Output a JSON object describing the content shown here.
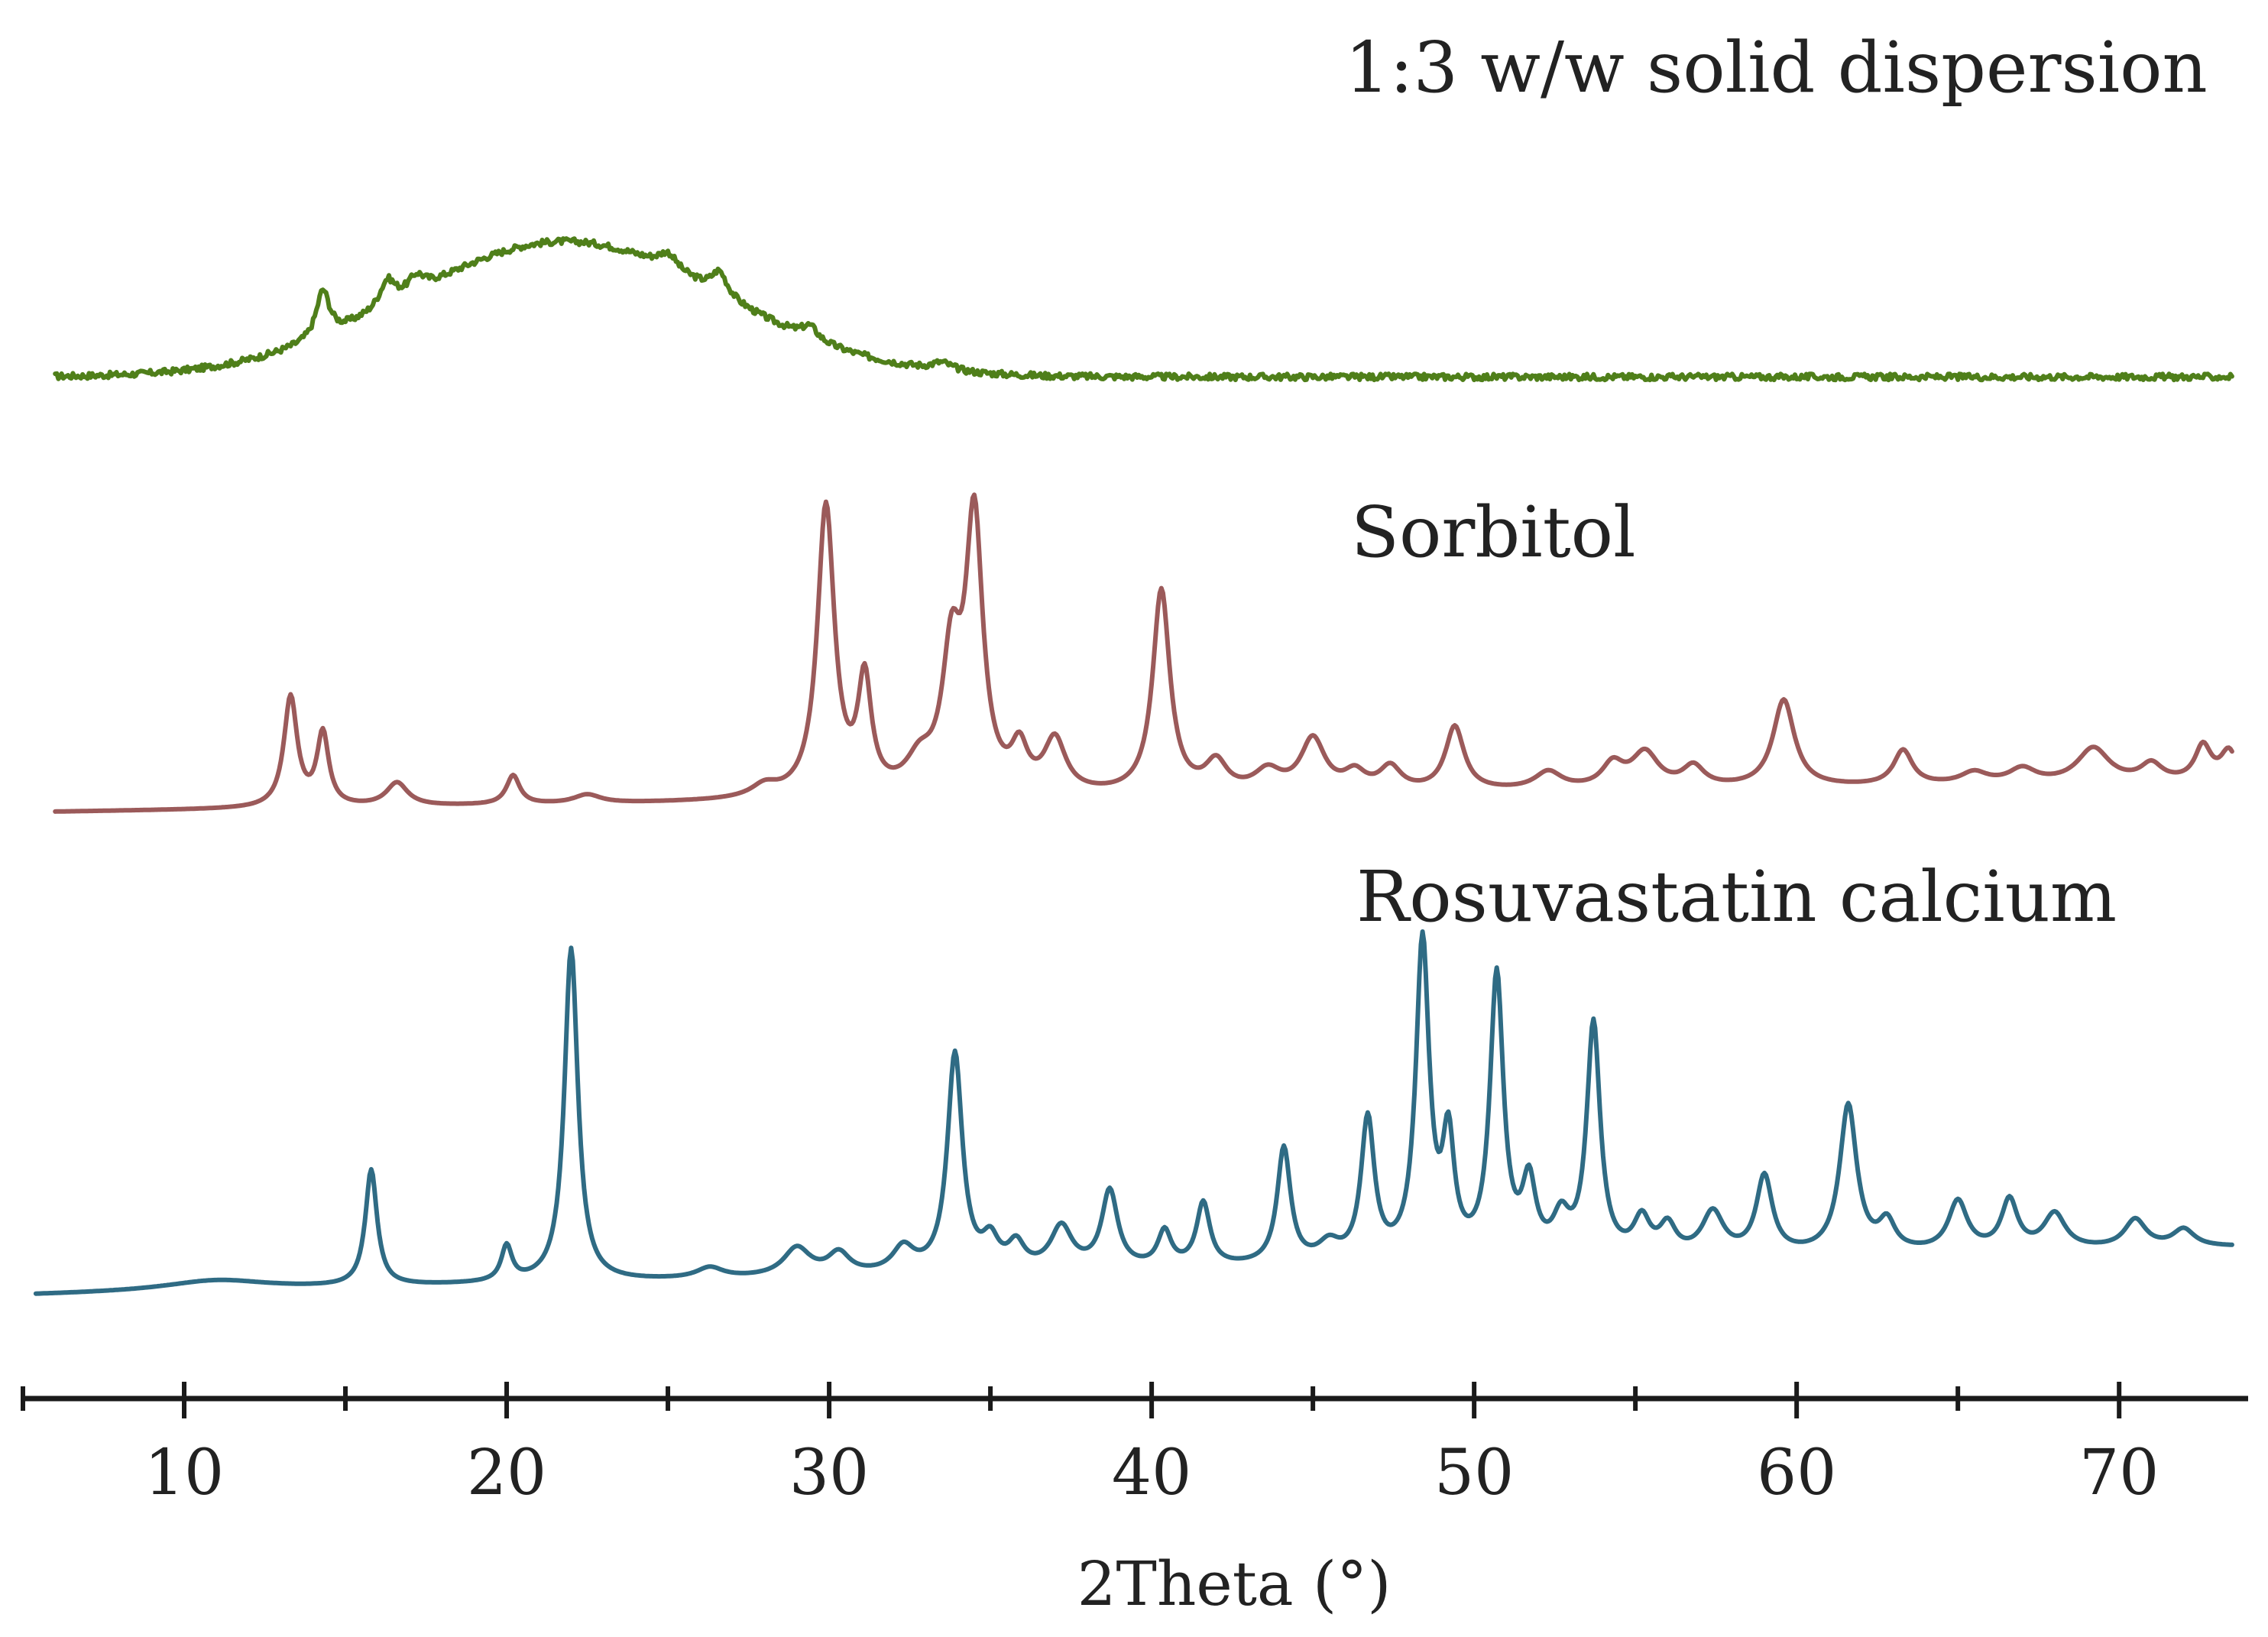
{
  "chart_data": {
    "type": "line",
    "title": "",
    "xlabel": "2Theta (°)",
    "ylabel": "",
    "xlim": [
      5,
      74
    ],
    "x_ticks": [
      10,
      20,
      30,
      40,
      50,
      60,
      70
    ],
    "minor_tick_step": 5,
    "intensity_units": "relative (offset, arbitrary units)",
    "series": [
      {
        "name": "1:3 w/w solid dispersion",
        "color": "#4f7f1a",
        "baseline": 0.02,
        "noise": 0.012,
        "halo": {
          "center": 21.8,
          "width": 4.8,
          "height": 0.52
        },
        "peaks": [
          [
            14.3,
            0.18,
            0.25
          ],
          [
            16.3,
            0.1,
            0.3
          ],
          [
            17.2,
            0.06,
            0.3
          ],
          [
            25.0,
            0.06,
            0.35
          ],
          [
            26.6,
            0.09,
            0.3
          ],
          [
            29.4,
            0.05,
            0.3
          ],
          [
            33.5,
            0.03,
            0.4
          ]
        ]
      },
      {
        "name": "Sorbitol",
        "color": "#9b5a5a",
        "baseline": 0.0,
        "noise": 0.0,
        "peaks": [
          [
            13.3,
            0.38,
            0.25
          ],
          [
            14.3,
            0.25,
            0.22
          ],
          [
            16.6,
            0.08,
            0.4
          ],
          [
            20.2,
            0.1,
            0.25
          ],
          [
            22.5,
            0.03,
            0.5
          ],
          [
            28.0,
            0.04,
            0.5
          ],
          [
            29.9,
            1.0,
            0.32
          ],
          [
            31.1,
            0.38,
            0.25
          ],
          [
            32.8,
            0.1,
            0.5
          ],
          [
            33.8,
            0.45,
            0.35
          ],
          [
            34.5,
            0.93,
            0.32
          ],
          [
            35.9,
            0.14,
            0.3
          ],
          [
            37.0,
            0.18,
            0.4
          ],
          [
            40.3,
            0.7,
            0.32
          ],
          [
            42.0,
            0.1,
            0.4
          ],
          [
            43.6,
            0.07,
            0.5
          ],
          [
            45.0,
            0.18,
            0.45
          ],
          [
            46.3,
            0.06,
            0.4
          ],
          [
            47.4,
            0.08,
            0.4
          ],
          [
            49.4,
            0.22,
            0.35
          ],
          [
            52.3,
            0.06,
            0.5
          ],
          [
            54.3,
            0.08,
            0.4
          ],
          [
            55.3,
            0.12,
            0.5
          ],
          [
            56.8,
            0.07,
            0.4
          ],
          [
            59.6,
            0.3,
            0.4
          ],
          [
            63.3,
            0.12,
            0.35
          ],
          [
            65.5,
            0.04,
            0.5
          ],
          [
            67.0,
            0.05,
            0.5
          ],
          [
            69.2,
            0.12,
            0.6
          ],
          [
            71.0,
            0.06,
            0.4
          ],
          [
            72.6,
            0.12,
            0.3
          ],
          [
            73.4,
            0.1,
            0.3
          ]
        ]
      },
      {
        "name": "Rosuvastatin calcium",
        "color": "#2f6b84",
        "baseline": 0.0,
        "noise": 0.0,
        "peaks": [
          [
            11.0,
            0.03,
            2.0
          ],
          [
            15.8,
            0.33,
            0.22
          ],
          [
            20.0,
            0.1,
            0.2
          ],
          [
            22.0,
            0.95,
            0.25
          ],
          [
            26.3,
            0.03,
            0.5
          ],
          [
            29.0,
            0.08,
            0.5
          ],
          [
            30.3,
            0.06,
            0.4
          ],
          [
            32.3,
            0.07,
            0.4
          ],
          [
            33.9,
            0.62,
            0.28
          ],
          [
            35.0,
            0.08,
            0.3
          ],
          [
            35.8,
            0.07,
            0.3
          ],
          [
            37.2,
            0.12,
            0.4
          ],
          [
            38.7,
            0.22,
            0.3
          ],
          [
            40.4,
            0.1,
            0.25
          ],
          [
            41.6,
            0.18,
            0.25
          ],
          [
            44.1,
            0.33,
            0.25
          ],
          [
            45.5,
            0.05,
            0.4
          ],
          [
            46.7,
            0.4,
            0.25
          ],
          [
            48.4,
            0.9,
            0.25
          ],
          [
            49.2,
            0.32,
            0.22
          ],
          [
            50.7,
            0.8,
            0.25
          ],
          [
            51.7,
            0.2,
            0.25
          ],
          [
            52.7,
            0.1,
            0.3
          ],
          [
            53.7,
            0.66,
            0.25
          ],
          [
            55.2,
            0.1,
            0.3
          ],
          [
            56.0,
            0.08,
            0.3
          ],
          [
            57.4,
            0.12,
            0.4
          ],
          [
            59.0,
            0.22,
            0.3
          ],
          [
            61.6,
            0.42,
            0.32
          ],
          [
            62.8,
            0.08,
            0.3
          ],
          [
            65.0,
            0.14,
            0.35
          ],
          [
            66.6,
            0.14,
            0.3
          ],
          [
            68.0,
            0.1,
            0.4
          ],
          [
            70.5,
            0.08,
            0.4
          ],
          [
            72.0,
            0.05,
            0.4
          ]
        ]
      }
    ]
  }
}
